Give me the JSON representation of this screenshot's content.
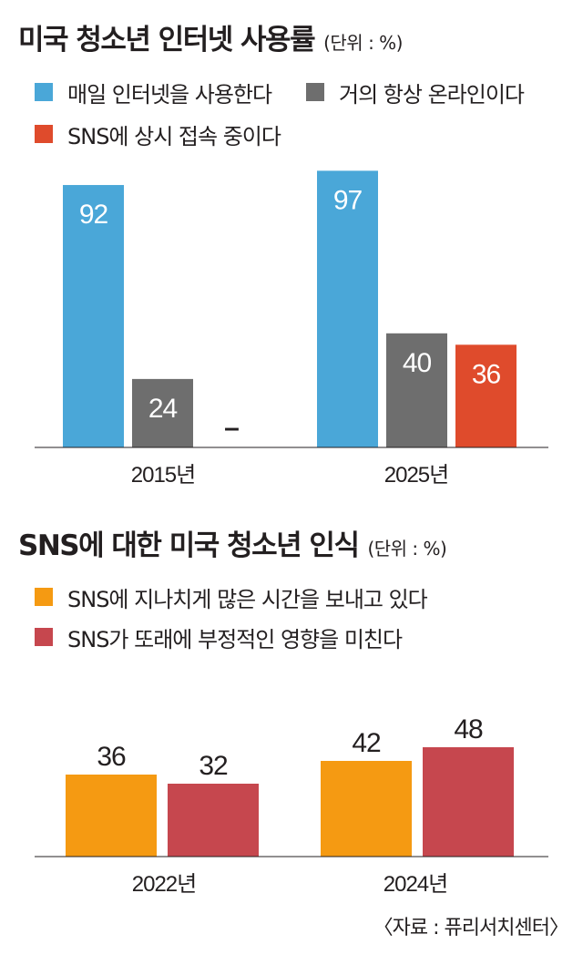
{
  "chart_data": [
    {
      "type": "bar",
      "title": "미국 청소년 인터넷 사용률",
      "unit": "(단위 : %)",
      "categories": [
        "2015년",
        "2025년"
      ],
      "series": [
        {
          "name": "매일 인터넷을 사용한다",
          "color": "#4aa7d8",
          "values": [
            92,
            97
          ],
          "labels": [
            "92",
            "97"
          ]
        },
        {
          "name": "거의 항상 온라인이다",
          "color": "#6e6e6e",
          "values": [
            24,
            40
          ],
          "labels": [
            "24",
            "40"
          ]
        },
        {
          "name": "SNS에 상시 접속 중이다",
          "color": "#df4b2c",
          "values": [
            null,
            36
          ],
          "labels": [
            "–",
            "36"
          ]
        }
      ],
      "ylim": [
        0,
        100
      ]
    },
    {
      "type": "bar",
      "title": "SNS에 대한 미국 청소년 인식",
      "unit": "(단위 : %)",
      "categories": [
        "2022년",
        "2024년"
      ],
      "series": [
        {
          "name": "SNS에 지나치게 많은 시간을 보내고 있다",
          "color": "#f59a12",
          "values": [
            36,
            42
          ],
          "labels": [
            "36",
            "42"
          ]
        },
        {
          "name": "SNS가 또래에 부정적인 영향을 미친다",
          "color": "#c6474e",
          "values": [
            32,
            48
          ],
          "labels": [
            "32",
            "48"
          ]
        }
      ],
      "ylim": [
        0,
        100
      ]
    }
  ],
  "source": "〈자료 : 퓨리서치센터〉"
}
